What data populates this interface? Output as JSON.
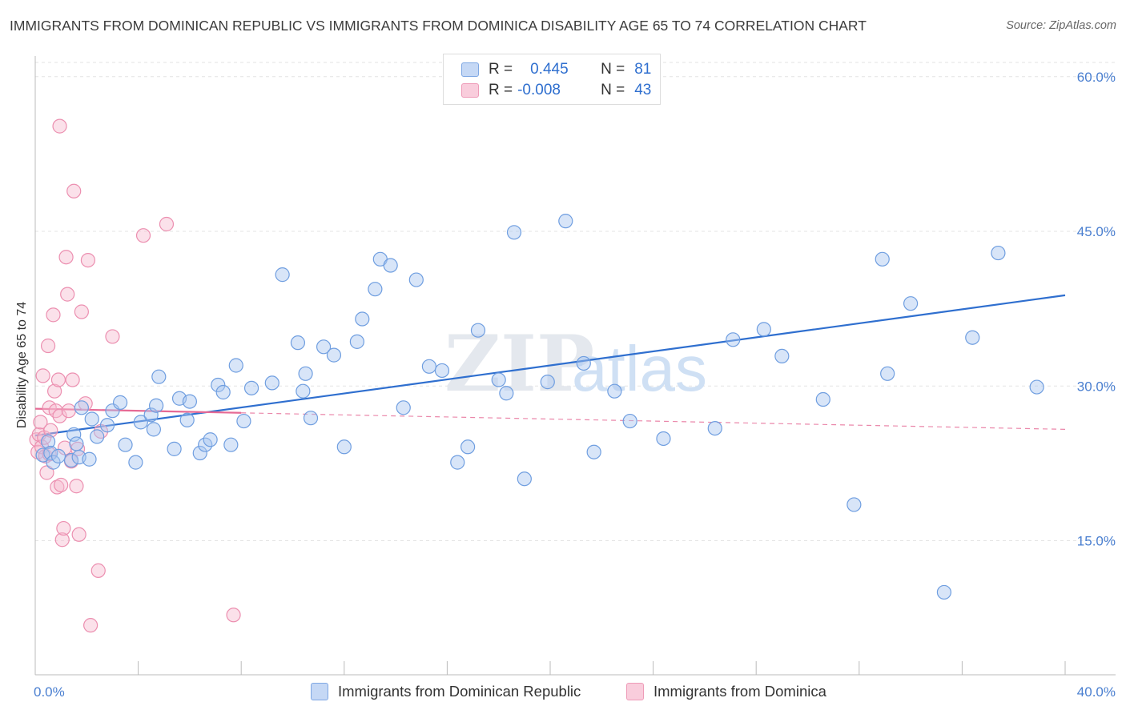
{
  "header": {
    "title": "IMMIGRANTS FROM DOMINICAN REPUBLIC VS IMMIGRANTS FROM DOMINICA DISABILITY AGE 65 TO 74 CORRELATION CHART",
    "source": "Source: ZipAtlas.com"
  },
  "legend": {
    "r_label": "R =",
    "n_label": "N =",
    "series": [
      {
        "r": "0.445",
        "n": "81"
      },
      {
        "r": "-0.008",
        "n": "43"
      }
    ]
  },
  "bottom_legend": [
    "Immigrants from Dominican Republic",
    "Immigrants from Dominica"
  ],
  "watermark": {
    "zip": "ZIP",
    "atlas": "atlas"
  },
  "colors": {
    "blue_fill": "#a9c6f0",
    "blue_stroke": "#6f9ee0",
    "blue_line": "#2f6fcf",
    "pink_fill": "#f6bdd0",
    "pink_stroke": "#ec8fb0",
    "pink_line": "#e66a95"
  },
  "chart_data": {
    "type": "scatter",
    "title": "IMMIGRANTS FROM DOMINICAN REPUBLIC VS IMMIGRANTS FROM DOMINICA DISABILITY AGE 65 TO 74 CORRELATION CHART",
    "xlabel": "",
    "ylabel": "Disability Age 65 to 74",
    "xlim": [
      0,
      40
    ],
    "ylim": [
      2,
      62
    ],
    "x_tick_labels": [
      "0.0%",
      "40.0%"
    ],
    "y_ticks": [
      15,
      30,
      45,
      60
    ],
    "y_tick_labels": [
      "15.0%",
      "30.0%",
      "45.0%",
      "60.0%"
    ],
    "series": [
      {
        "name": "Immigrants from Dominican Republic",
        "r": 0.445,
        "n": 81,
        "trend": {
          "x0": 0.0,
          "y0": 25.2,
          "x1": 40.0,
          "y1": 38.8,
          "style": "solid"
        },
        "points": [
          [
            0.3,
            23.3
          ],
          [
            0.5,
            24.6
          ],
          [
            0.6,
            23.5
          ],
          [
            0.7,
            22.6
          ],
          [
            0.9,
            23.2
          ],
          [
            1.4,
            22.8
          ],
          [
            1.5,
            25.3
          ],
          [
            1.6,
            24.4
          ],
          [
            1.7,
            23.1
          ],
          [
            1.8,
            27.9
          ],
          [
            2.1,
            22.9
          ],
          [
            2.2,
            26.8
          ],
          [
            2.4,
            25.1
          ],
          [
            2.8,
            26.2
          ],
          [
            3.0,
            27.6
          ],
          [
            3.3,
            28.4
          ],
          [
            3.5,
            24.3
          ],
          [
            3.9,
            22.6
          ],
          [
            4.1,
            26.5
          ],
          [
            4.5,
            27.2
          ],
          [
            4.6,
            25.8
          ],
          [
            4.7,
            28.1
          ],
          [
            4.8,
            30.9
          ],
          [
            5.4,
            23.9
          ],
          [
            5.6,
            28.8
          ],
          [
            5.9,
            26.7
          ],
          [
            6.0,
            28.5
          ],
          [
            6.4,
            23.5
          ],
          [
            6.6,
            24.3
          ],
          [
            6.8,
            24.8
          ],
          [
            7.1,
            30.1
          ],
          [
            7.3,
            29.4
          ],
          [
            7.6,
            24.3
          ],
          [
            7.8,
            32.0
          ],
          [
            8.1,
            26.6
          ],
          [
            8.4,
            29.8
          ],
          [
            9.2,
            30.3
          ],
          [
            9.6,
            40.8
          ],
          [
            10.2,
            34.2
          ],
          [
            10.4,
            29.5
          ],
          [
            10.5,
            31.2
          ],
          [
            10.7,
            26.9
          ],
          [
            11.2,
            33.8
          ],
          [
            11.6,
            33.0
          ],
          [
            12.0,
            24.1
          ],
          [
            12.5,
            34.3
          ],
          [
            12.7,
            36.5
          ],
          [
            13.2,
            39.4
          ],
          [
            13.4,
            42.3
          ],
          [
            13.8,
            41.7
          ],
          [
            14.3,
            27.9
          ],
          [
            14.8,
            40.3
          ],
          [
            15.3,
            31.9
          ],
          [
            15.8,
            31.5
          ],
          [
            16.4,
            22.6
          ],
          [
            16.8,
            24.1
          ],
          [
            17.2,
            35.4
          ],
          [
            18.0,
            30.6
          ],
          [
            18.3,
            29.3
          ],
          [
            18.6,
            44.9
          ],
          [
            19.0,
            21.0
          ],
          [
            19.9,
            30.4
          ],
          [
            20.6,
            46.0
          ],
          [
            21.3,
            32.2
          ],
          [
            21.7,
            23.6
          ],
          [
            22.5,
            29.5
          ],
          [
            23.1,
            26.6
          ],
          [
            24.4,
            24.9
          ],
          [
            26.4,
            25.9
          ],
          [
            27.1,
            34.5
          ],
          [
            28.3,
            35.5
          ],
          [
            29.0,
            32.9
          ],
          [
            30.6,
            28.7
          ],
          [
            31.8,
            18.5
          ],
          [
            32.9,
            42.3
          ],
          [
            33.1,
            31.2
          ],
          [
            34.0,
            38.0
          ],
          [
            35.3,
            10.0
          ],
          [
            36.4,
            34.7
          ],
          [
            38.9,
            29.9
          ],
          [
            37.4,
            42.9
          ]
        ]
      },
      {
        "name": "Immigrants from Dominica",
        "r": -0.008,
        "n": 43,
        "trend_solid": {
          "x0": 0.0,
          "y0": 27.8,
          "x1": 8.0,
          "y1": 27.4,
          "style": "solid"
        },
        "trend_dashed": {
          "x0": 8.0,
          "y0": 27.4,
          "x1": 40.0,
          "y1": 25.8,
          "style": "dashed"
        },
        "points": [
          [
            0.05,
            24.8
          ],
          [
            0.1,
            23.6
          ],
          [
            0.15,
            25.3
          ],
          [
            0.2,
            26.5
          ],
          [
            0.25,
            24.1
          ],
          [
            0.3,
            31.0
          ],
          [
            0.35,
            25.0
          ],
          [
            0.4,
            23.2
          ],
          [
            0.45,
            21.6
          ],
          [
            0.5,
            33.9
          ],
          [
            0.55,
            27.9
          ],
          [
            0.6,
            25.7
          ],
          [
            0.7,
            36.9
          ],
          [
            0.75,
            29.5
          ],
          [
            0.8,
            27.6
          ],
          [
            0.85,
            20.2
          ],
          [
            0.9,
            30.6
          ],
          [
            0.95,
            27.1
          ],
          [
            1.0,
            20.4
          ],
          [
            1.05,
            15.1
          ],
          [
            1.1,
            16.2
          ],
          [
            1.15,
            24.0
          ],
          [
            1.2,
            42.5
          ],
          [
            1.25,
            38.9
          ],
          [
            1.3,
            27.6
          ],
          [
            1.4,
            22.7
          ],
          [
            1.45,
            30.6
          ],
          [
            1.5,
            48.9
          ],
          [
            1.6,
            20.3
          ],
          [
            1.7,
            15.6
          ],
          [
            1.8,
            37.2
          ],
          [
            1.95,
            28.3
          ],
          [
            2.05,
            42.2
          ],
          [
            2.15,
            6.8
          ],
          [
            2.45,
            12.1
          ],
          [
            2.55,
            25.6
          ],
          [
            3.0,
            34.8
          ],
          [
            4.2,
            44.6
          ],
          [
            5.1,
            45.7
          ],
          [
            0.95,
            55.2
          ],
          [
            0.55,
            23.4
          ],
          [
            1.65,
            23.9
          ],
          [
            7.7,
            7.8
          ]
        ]
      }
    ]
  }
}
